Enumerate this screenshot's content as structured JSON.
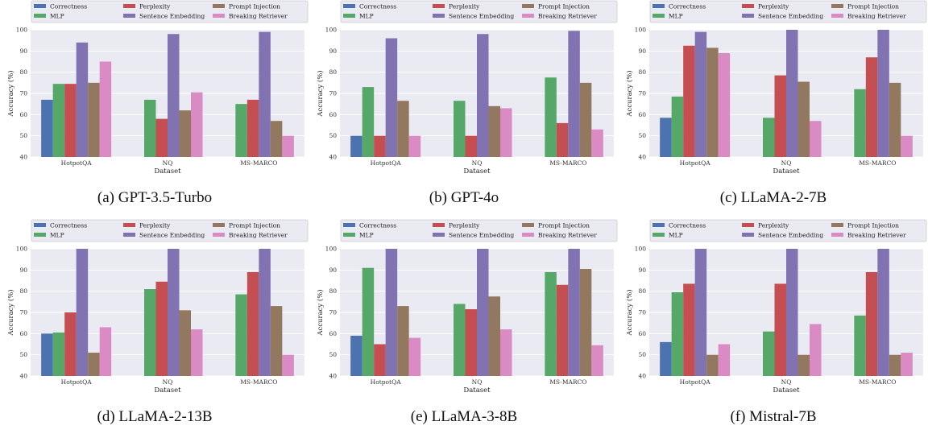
{
  "colors": {
    "Correctness": "#4c72b0",
    "MLP": "#55a868",
    "Perplexity": "#c44e52",
    "Sentence Embedding": "#8172b2",
    "Prompt Injection": "#937860",
    "Breaking Retriever": "#da8bc3",
    "plot_bg": "#eaeaf2",
    "grid": "#ffffff"
  },
  "legend_order": [
    "Correctness",
    "Perplexity",
    "Prompt Injection",
    "MLP",
    "Sentence Embedding",
    "Breaking Retriever"
  ],
  "chart_data": [
    {
      "type": "bar",
      "caption": "(a) GPT-3.5-Turbo",
      "categories": [
        "HotpotQA",
        "NQ",
        "MS-MARCO"
      ],
      "xlabel": "Dataset",
      "ylabel": "Accuracy (%)",
      "ylim": [
        40,
        100
      ],
      "yticks": [
        40,
        50,
        60,
        70,
        80,
        90,
        100
      ],
      "legend": "top",
      "grid": true,
      "series": [
        {
          "name": "Correctness",
          "values": [
            67,
            null,
            null
          ]
        },
        {
          "name": "MLP",
          "values": [
            74.5,
            67,
            65
          ]
        },
        {
          "name": "Perplexity",
          "values": [
            74.5,
            58,
            67
          ]
        },
        {
          "name": "Sentence Embedding",
          "values": [
            94,
            98,
            99
          ]
        },
        {
          "name": "Prompt Injection",
          "values": [
            75,
            62,
            57
          ]
        },
        {
          "name": "Breaking Retriever",
          "values": [
            85,
            70.5,
            50
          ]
        }
      ]
    },
    {
      "type": "bar",
      "caption": "(b) GPT-4o",
      "categories": [
        "HotpotQA",
        "NQ",
        "MS-MARCO"
      ],
      "xlabel": "Dataset",
      "ylabel": "Accuracy (%)",
      "ylim": [
        40,
        100
      ],
      "yticks": [
        40,
        50,
        60,
        70,
        80,
        90,
        100
      ],
      "legend": "top",
      "grid": true,
      "series": [
        {
          "name": "Correctness",
          "values": [
            50,
            null,
            null
          ]
        },
        {
          "name": "MLP",
          "values": [
            73,
            66.5,
            77.5
          ]
        },
        {
          "name": "Perplexity",
          "values": [
            50,
            50,
            56
          ]
        },
        {
          "name": "Sentence Embedding",
          "values": [
            96,
            98,
            99.5
          ]
        },
        {
          "name": "Prompt Injection",
          "values": [
            66.5,
            64,
            75
          ]
        },
        {
          "name": "Breaking Retriever",
          "values": [
            50,
            63,
            53
          ]
        }
      ]
    },
    {
      "type": "bar",
      "caption": "(c) LLaMA-2-7B",
      "categories": [
        "HotpotQA",
        "NQ",
        "MS-MARCO"
      ],
      "xlabel": "Dataset",
      "ylabel": "Accuracy (%)",
      "ylim": [
        40,
        100
      ],
      "yticks": [
        40,
        50,
        60,
        70,
        80,
        90,
        100
      ],
      "legend": "top",
      "grid": true,
      "series": [
        {
          "name": "Correctness",
          "values": [
            58.5,
            null,
            null
          ]
        },
        {
          "name": "MLP",
          "values": [
            68.5,
            58.5,
            72
          ]
        },
        {
          "name": "Perplexity",
          "values": [
            92.5,
            78.5,
            87
          ]
        },
        {
          "name": "Sentence Embedding",
          "values": [
            99,
            100,
            100
          ]
        },
        {
          "name": "Prompt Injection",
          "values": [
            91.5,
            75.5,
            75
          ]
        },
        {
          "name": "Breaking Retriever",
          "values": [
            89,
            57,
            50
          ]
        }
      ]
    },
    {
      "type": "bar",
      "caption": "(d) LLaMA-2-13B",
      "categories": [
        "HotpotQA",
        "NQ",
        "MS-MARCO"
      ],
      "xlabel": "Dataset",
      "ylabel": "Accuracy (%)",
      "ylim": [
        40,
        100
      ],
      "yticks": [
        40,
        50,
        60,
        70,
        80,
        90,
        100
      ],
      "legend": "top",
      "grid": true,
      "series": [
        {
          "name": "Correctness",
          "values": [
            60,
            null,
            null
          ]
        },
        {
          "name": "MLP",
          "values": [
            60.5,
            81,
            78.5
          ]
        },
        {
          "name": "Perplexity",
          "values": [
            70,
            84.5,
            89
          ]
        },
        {
          "name": "Sentence Embedding",
          "values": [
            100,
            100,
            100
          ]
        },
        {
          "name": "Prompt Injection",
          "values": [
            51,
            71,
            73
          ]
        },
        {
          "name": "Breaking Retriever",
          "values": [
            63,
            62,
            50
          ]
        }
      ]
    },
    {
      "type": "bar",
      "caption": "(e) LLaMA-3-8B",
      "categories": [
        "HotpotQA",
        "NQ",
        "MS-MARCO"
      ],
      "xlabel": "Dataset",
      "ylabel": "Accuracy (%)",
      "ylim": [
        40,
        100
      ],
      "yticks": [
        40,
        50,
        60,
        70,
        80,
        90,
        100
      ],
      "legend": "top",
      "grid": true,
      "series": [
        {
          "name": "Correctness",
          "values": [
            59,
            null,
            null
          ]
        },
        {
          "name": "MLP",
          "values": [
            91,
            74,
            89
          ]
        },
        {
          "name": "Perplexity",
          "values": [
            55,
            71.5,
            83
          ]
        },
        {
          "name": "Sentence Embedding",
          "values": [
            100,
            100,
            100
          ]
        },
        {
          "name": "Prompt Injection",
          "values": [
            73,
            77.5,
            90.5
          ]
        },
        {
          "name": "Breaking Retriever",
          "values": [
            58,
            62,
            54.5
          ]
        }
      ]
    },
    {
      "type": "bar",
      "caption": "(f) Mistral-7B",
      "categories": [
        "HotpotQA",
        "NQ",
        "MS-MARCO"
      ],
      "xlabel": "Dataset",
      "ylabel": "Accuracy (%)",
      "ylim": [
        40,
        100
      ],
      "yticks": [
        40,
        50,
        60,
        70,
        80,
        90,
        100
      ],
      "legend": "top",
      "grid": true,
      "series": [
        {
          "name": "Correctness",
          "values": [
            56,
            null,
            null
          ]
        },
        {
          "name": "MLP",
          "values": [
            79.5,
            61,
            68.5
          ]
        },
        {
          "name": "Perplexity",
          "values": [
            83.5,
            83.5,
            89
          ]
        },
        {
          "name": "Sentence Embedding",
          "values": [
            100,
            100,
            100
          ]
        },
        {
          "name": "Prompt Injection",
          "values": [
            50,
            50,
            50
          ]
        },
        {
          "name": "Breaking Retriever",
          "values": [
            55,
            64.5,
            51
          ]
        }
      ]
    }
  ]
}
